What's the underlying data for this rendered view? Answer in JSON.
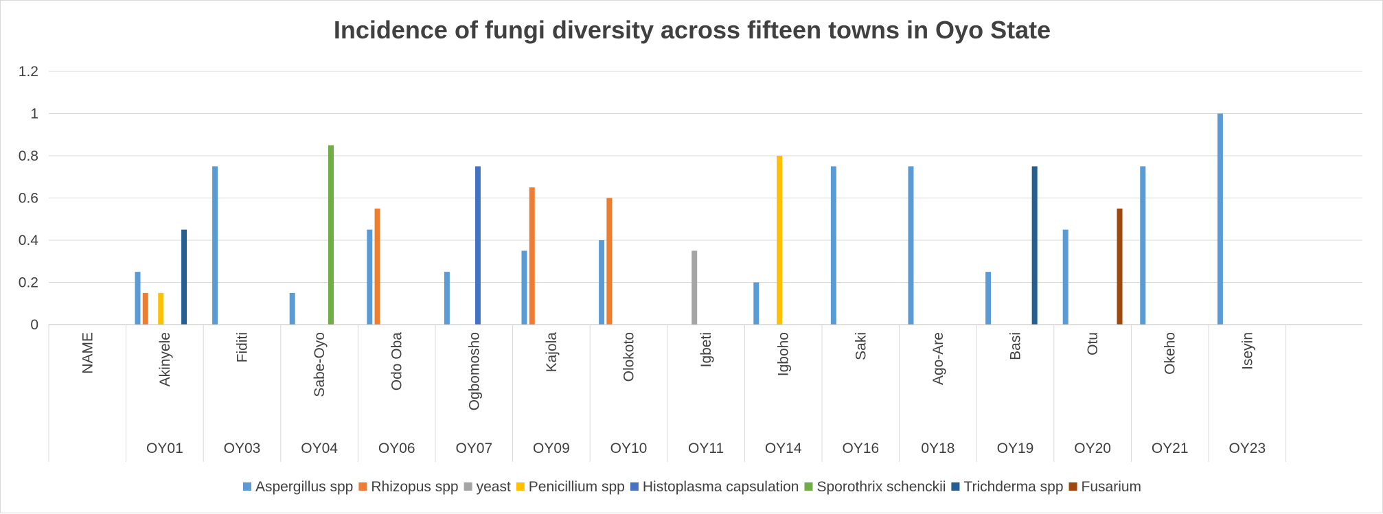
{
  "chart_data": {
    "type": "bar",
    "title": "Incidence of fungi diversity across fifteen towns in Oyo  State",
    "ylim": [
      0,
      1.2
    ],
    "yticks": [
      "0",
      "0.2",
      "0.4",
      "0.6",
      "0.8",
      "1",
      "1.2"
    ],
    "grid": true,
    "legend_position": "bottom",
    "categories": [
      "NAME",
      "Akinyele",
      "Fiditi",
      "Sabe-Oyo",
      "Odo Oba",
      "Ogbomosho",
      "Kajola",
      "Olokoto",
      "Igbeti",
      "Igboho",
      "Saki",
      "Ago-Are",
      "Basi",
      "Otu",
      "Okeho",
      "Iseyin"
    ],
    "codes": [
      "",
      "OY01",
      "OY03",
      "OY04",
      "OY06",
      "OY07",
      "OY09",
      "OY10",
      "OY11",
      "OY14",
      "OY16",
      "0Y18",
      "OY19",
      "OY20",
      "OY21",
      "OY23"
    ],
    "series": [
      {
        "name": "Aspergillus spp",
        "color": "#5b9bd5",
        "values": [
          null,
          0.25,
          0.75,
          0.15,
          0.45,
          0.25,
          0.35,
          0.4,
          null,
          0.2,
          0.75,
          0.75,
          0.25,
          0.45,
          0.75,
          1.0
        ]
      },
      {
        "name": "Rhizopus spp",
        "color": "#ed7d31",
        "values": [
          null,
          0.15,
          null,
          null,
          0.55,
          null,
          0.65,
          0.6,
          null,
          null,
          null,
          null,
          null,
          null,
          null,
          null
        ]
      },
      {
        "name": "yeast",
        "color": "#a5a5a5",
        "values": [
          null,
          null,
          null,
          null,
          null,
          null,
          null,
          null,
          0.35,
          null,
          null,
          null,
          null,
          null,
          null,
          null
        ]
      },
      {
        "name": "Penicillium spp",
        "color": "#ffc000",
        "values": [
          null,
          0.15,
          null,
          null,
          null,
          null,
          null,
          null,
          null,
          0.8,
          null,
          null,
          null,
          null,
          null,
          null
        ]
      },
      {
        "name": "Histoplasma capsulation",
        "color": "#4472c4",
        "values": [
          null,
          null,
          null,
          null,
          null,
          0.75,
          null,
          null,
          null,
          null,
          null,
          null,
          null,
          null,
          null,
          null
        ]
      },
      {
        "name": "Sporothrix schenckii",
        "color": "#70ad47",
        "values": [
          null,
          null,
          null,
          0.85,
          null,
          null,
          null,
          null,
          null,
          null,
          null,
          null,
          null,
          null,
          null,
          null
        ]
      },
      {
        "name": "Trichderma spp",
        "color": "#255e91",
        "values": [
          null,
          0.45,
          null,
          null,
          null,
          null,
          null,
          null,
          null,
          null,
          null,
          null,
          0.75,
          null,
          null,
          null
        ]
      },
      {
        "name": "Fusarium",
        "color": "#9e480e",
        "values": [
          null,
          null,
          null,
          null,
          null,
          null,
          null,
          null,
          null,
          null,
          null,
          null,
          null,
          0.55,
          null,
          null
        ]
      }
    ]
  }
}
